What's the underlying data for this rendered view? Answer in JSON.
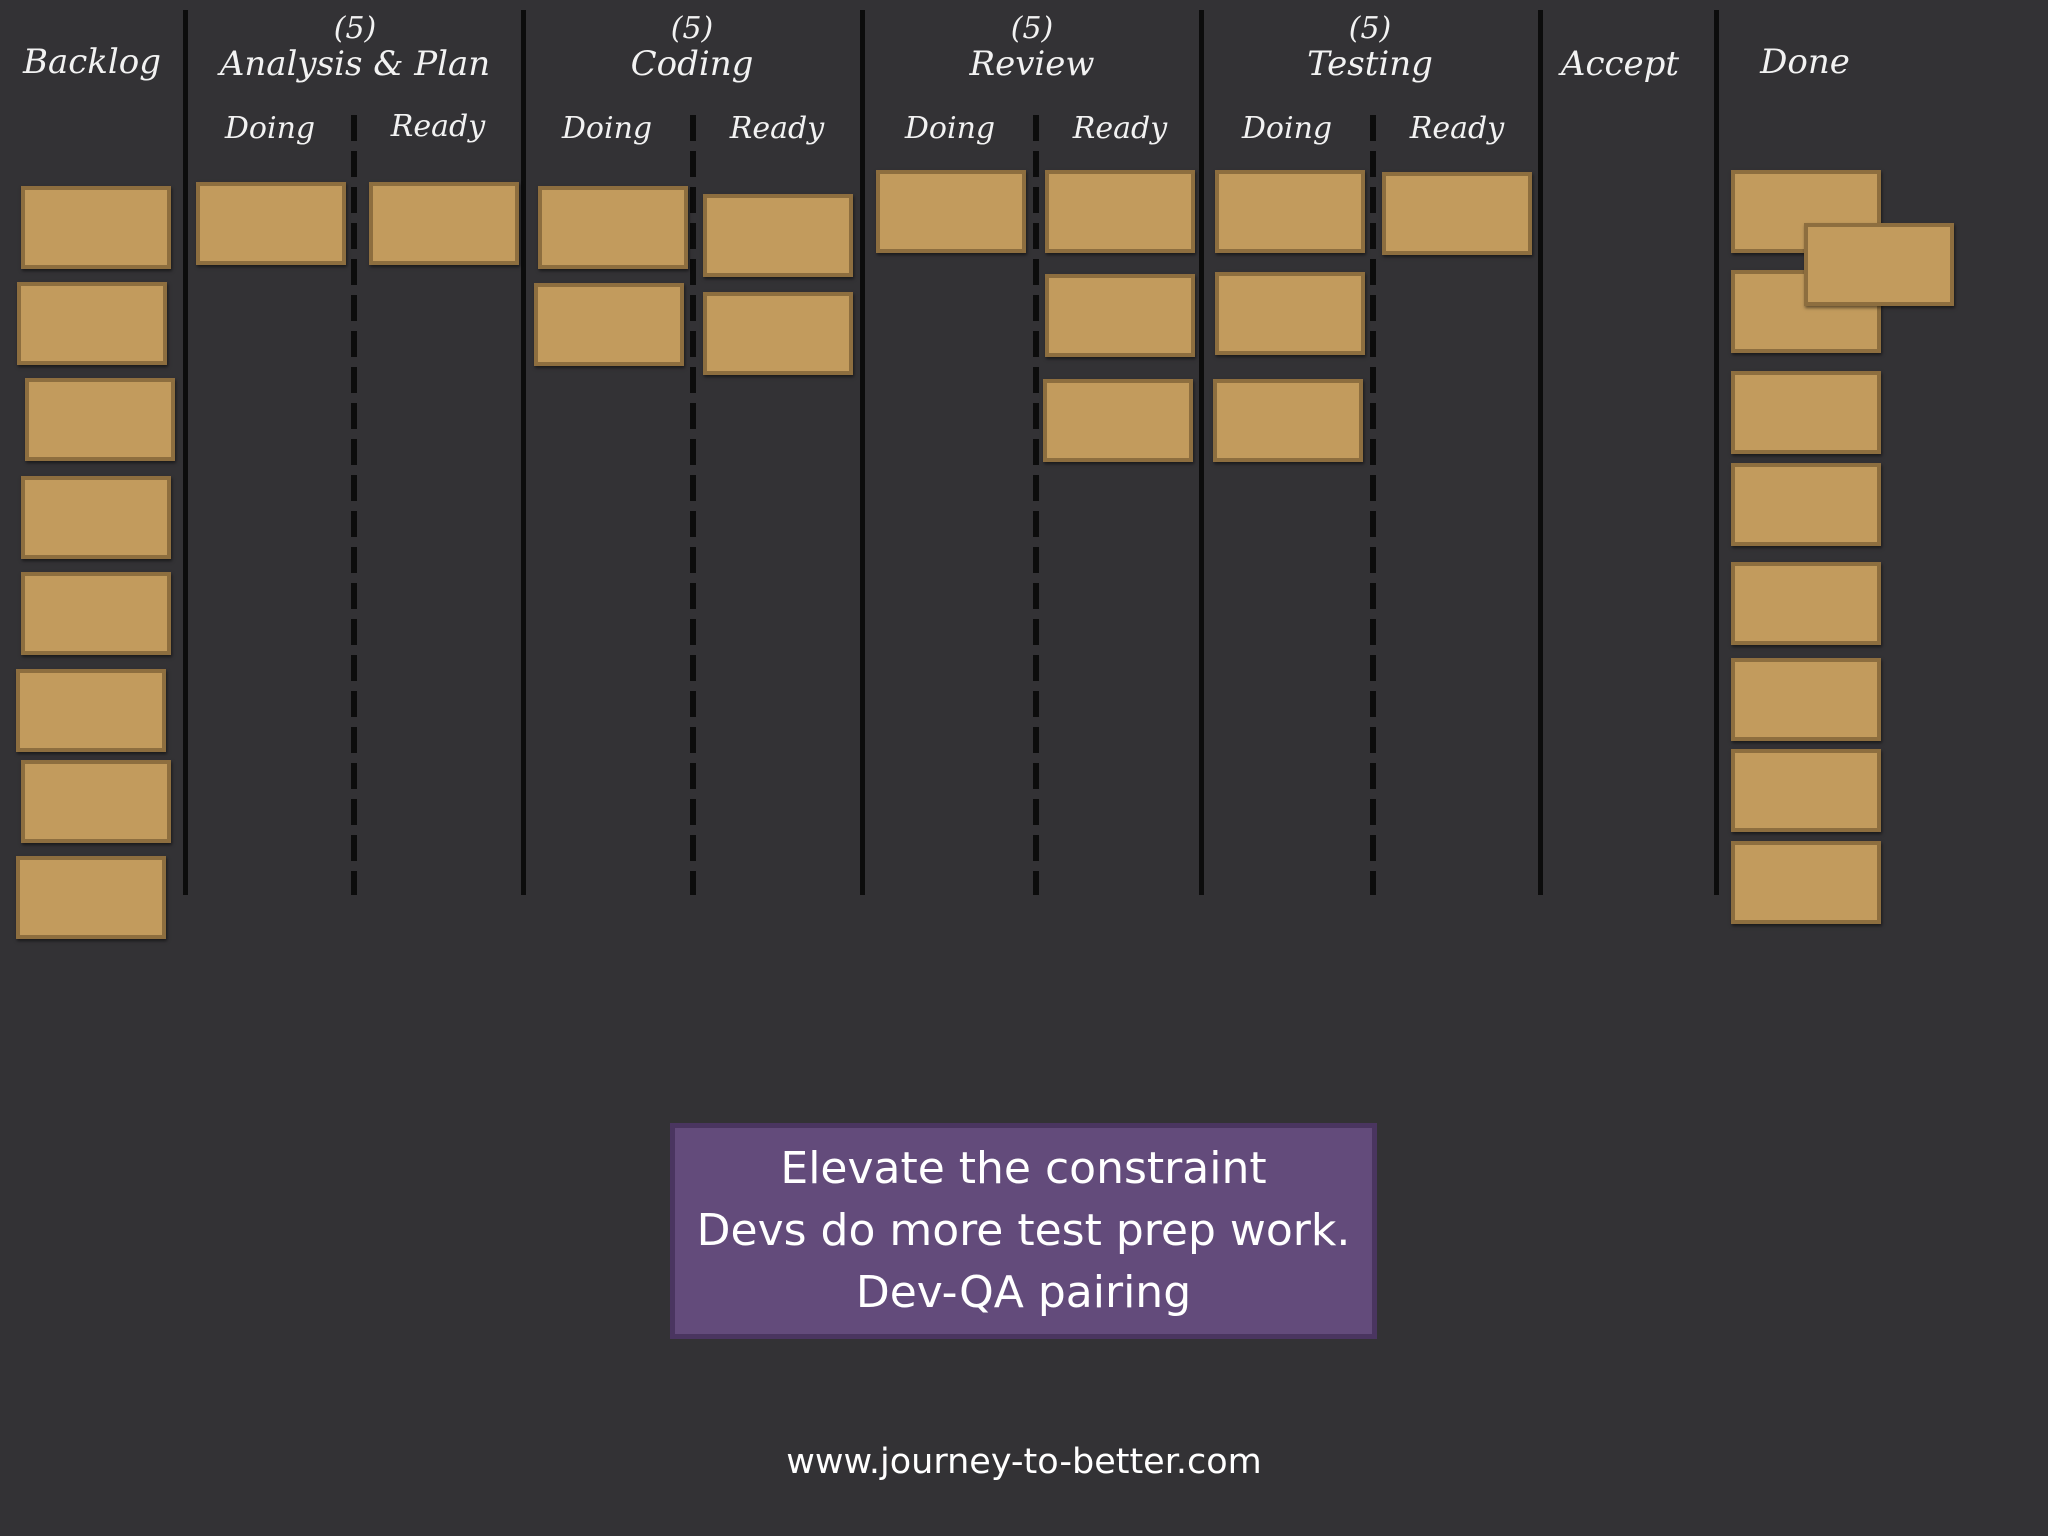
{
  "columns": {
    "backlog": "Backlog",
    "analysis": {
      "wip": "(5)",
      "title": "Analysis & Plan"
    },
    "coding": {
      "wip": "(5)",
      "title": "Coding"
    },
    "review": {
      "wip": "(5)",
      "title": "Review"
    },
    "testing": {
      "wip": "(5)",
      "title": "Testing"
    },
    "accept": "Accept",
    "done": "Done"
  },
  "subcolumns": {
    "doing": "Doing",
    "ready": "Ready"
  },
  "note": {
    "line1": "Elevate the constraint",
    "line2": "Devs do more test prep work.",
    "line3": "Dev-QA pairing"
  },
  "footer": "www.journey-to-better.com",
  "colors": {
    "background": "#333235",
    "card": "#c29b5d",
    "card_border": "#8d6e3f",
    "note": "#634b7b"
  }
}
